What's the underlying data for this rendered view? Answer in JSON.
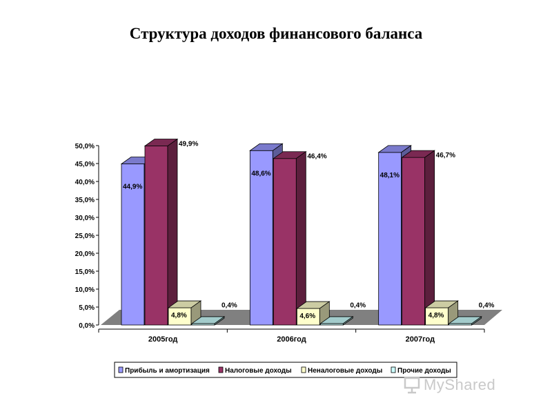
{
  "slide": {
    "title": "Структура доходов финансового баланса"
  },
  "watermark": {
    "text": "MyShared"
  },
  "chart_data": {
    "type": "bar",
    "style": "3d-clustered-column",
    "title": "",
    "xlabel": "",
    "ylabel": "",
    "ylim": [
      0,
      50
    ],
    "ytick_step": 5,
    "ytick_labels": [
      "0,0%",
      "5,0%",
      "10,0%",
      "15,0%",
      "20,0%",
      "25,0%",
      "30,0%",
      "35,0%",
      "40,0%",
      "45,0%",
      "50,0%"
    ],
    "categories": [
      "2005год",
      "2006год",
      "2007год"
    ],
    "series": [
      {
        "name": "Прибыль и амортизация",
        "values": [
          44.9,
          48.6,
          48.1
        ],
        "labels": [
          "44,9%",
          "48,6%",
          "48,1%"
        ],
        "color": "#9999ff"
      },
      {
        "name": "Налоговые доходы",
        "values": [
          49.9,
          46.4,
          46.7
        ],
        "labels": [
          "49,9%",
          "46,4%",
          "46,7%"
        ],
        "color": "#993366"
      },
      {
        "name": "Неналоговые доходы",
        "values": [
          4.8,
          4.6,
          4.8
        ],
        "labels": [
          "4,8%",
          "4,6%",
          "4,8%"
        ],
        "color": "#ffffcc"
      },
      {
        "name": "Прочие доходы",
        "values": [
          0.4,
          0.4,
          0.4
        ],
        "labels": [
          "0,4%",
          "0,4%",
          "0,4%"
        ],
        "color": "#ccffff"
      }
    ],
    "floor_color": "#808080",
    "grid": false,
    "legend_position": "bottom"
  }
}
